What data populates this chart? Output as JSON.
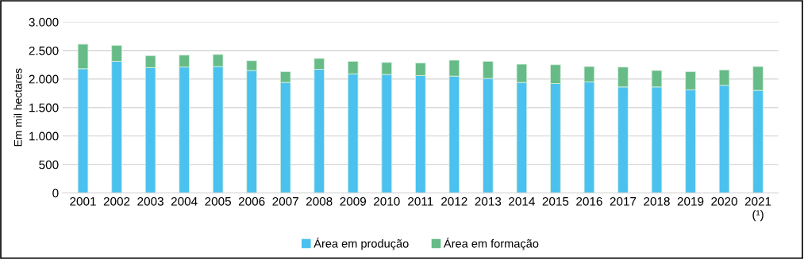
{
  "chart_data": {
    "type": "bar",
    "stacked": true,
    "ylabel": "Em mil hectares",
    "categories": [
      "2001",
      "2002",
      "2003",
      "2004",
      "2005",
      "2006",
      "2007",
      "2008",
      "2009",
      "2010",
      "2011",
      "2012",
      "2013",
      "2014",
      "2015",
      "2016",
      "2017",
      "2018",
      "2019",
      "2020",
      "2021\n(¹)"
    ],
    "series": [
      {
        "name": "Área em produção",
        "color": "#4ac1ee",
        "values": [
          2180,
          2310,
          2200,
          2210,
          2220,
          2150,
          1940,
          2170,
          2090,
          2080,
          2060,
          2050,
          2010,
          1940,
          1920,
          1950,
          1860,
          1860,
          1810,
          1890,
          1800
        ]
      },
      {
        "name": "Área em formação",
        "color": "#66bb87",
        "values": [
          430,
          280,
          210,
          210,
          210,
          170,
          190,
          190,
          220,
          210,
          220,
          280,
          300,
          320,
          330,
          270,
          350,
          290,
          320,
          270,
          420
        ]
      }
    ],
    "ylim": [
      0,
      3000
    ],
    "yticks": [
      {
        "value": 0,
        "label": "0"
      },
      {
        "value": 500,
        "label": "500"
      },
      {
        "value": 1000,
        "label": "1.000"
      },
      {
        "value": 1500,
        "label": "1.500"
      },
      {
        "value": 2000,
        "label": "2.000"
      },
      {
        "value": 2500,
        "label": "2.500"
      },
      {
        "value": 3000,
        "label": "3.000"
      }
    ],
    "grid": "y",
    "legend": "bottom"
  }
}
